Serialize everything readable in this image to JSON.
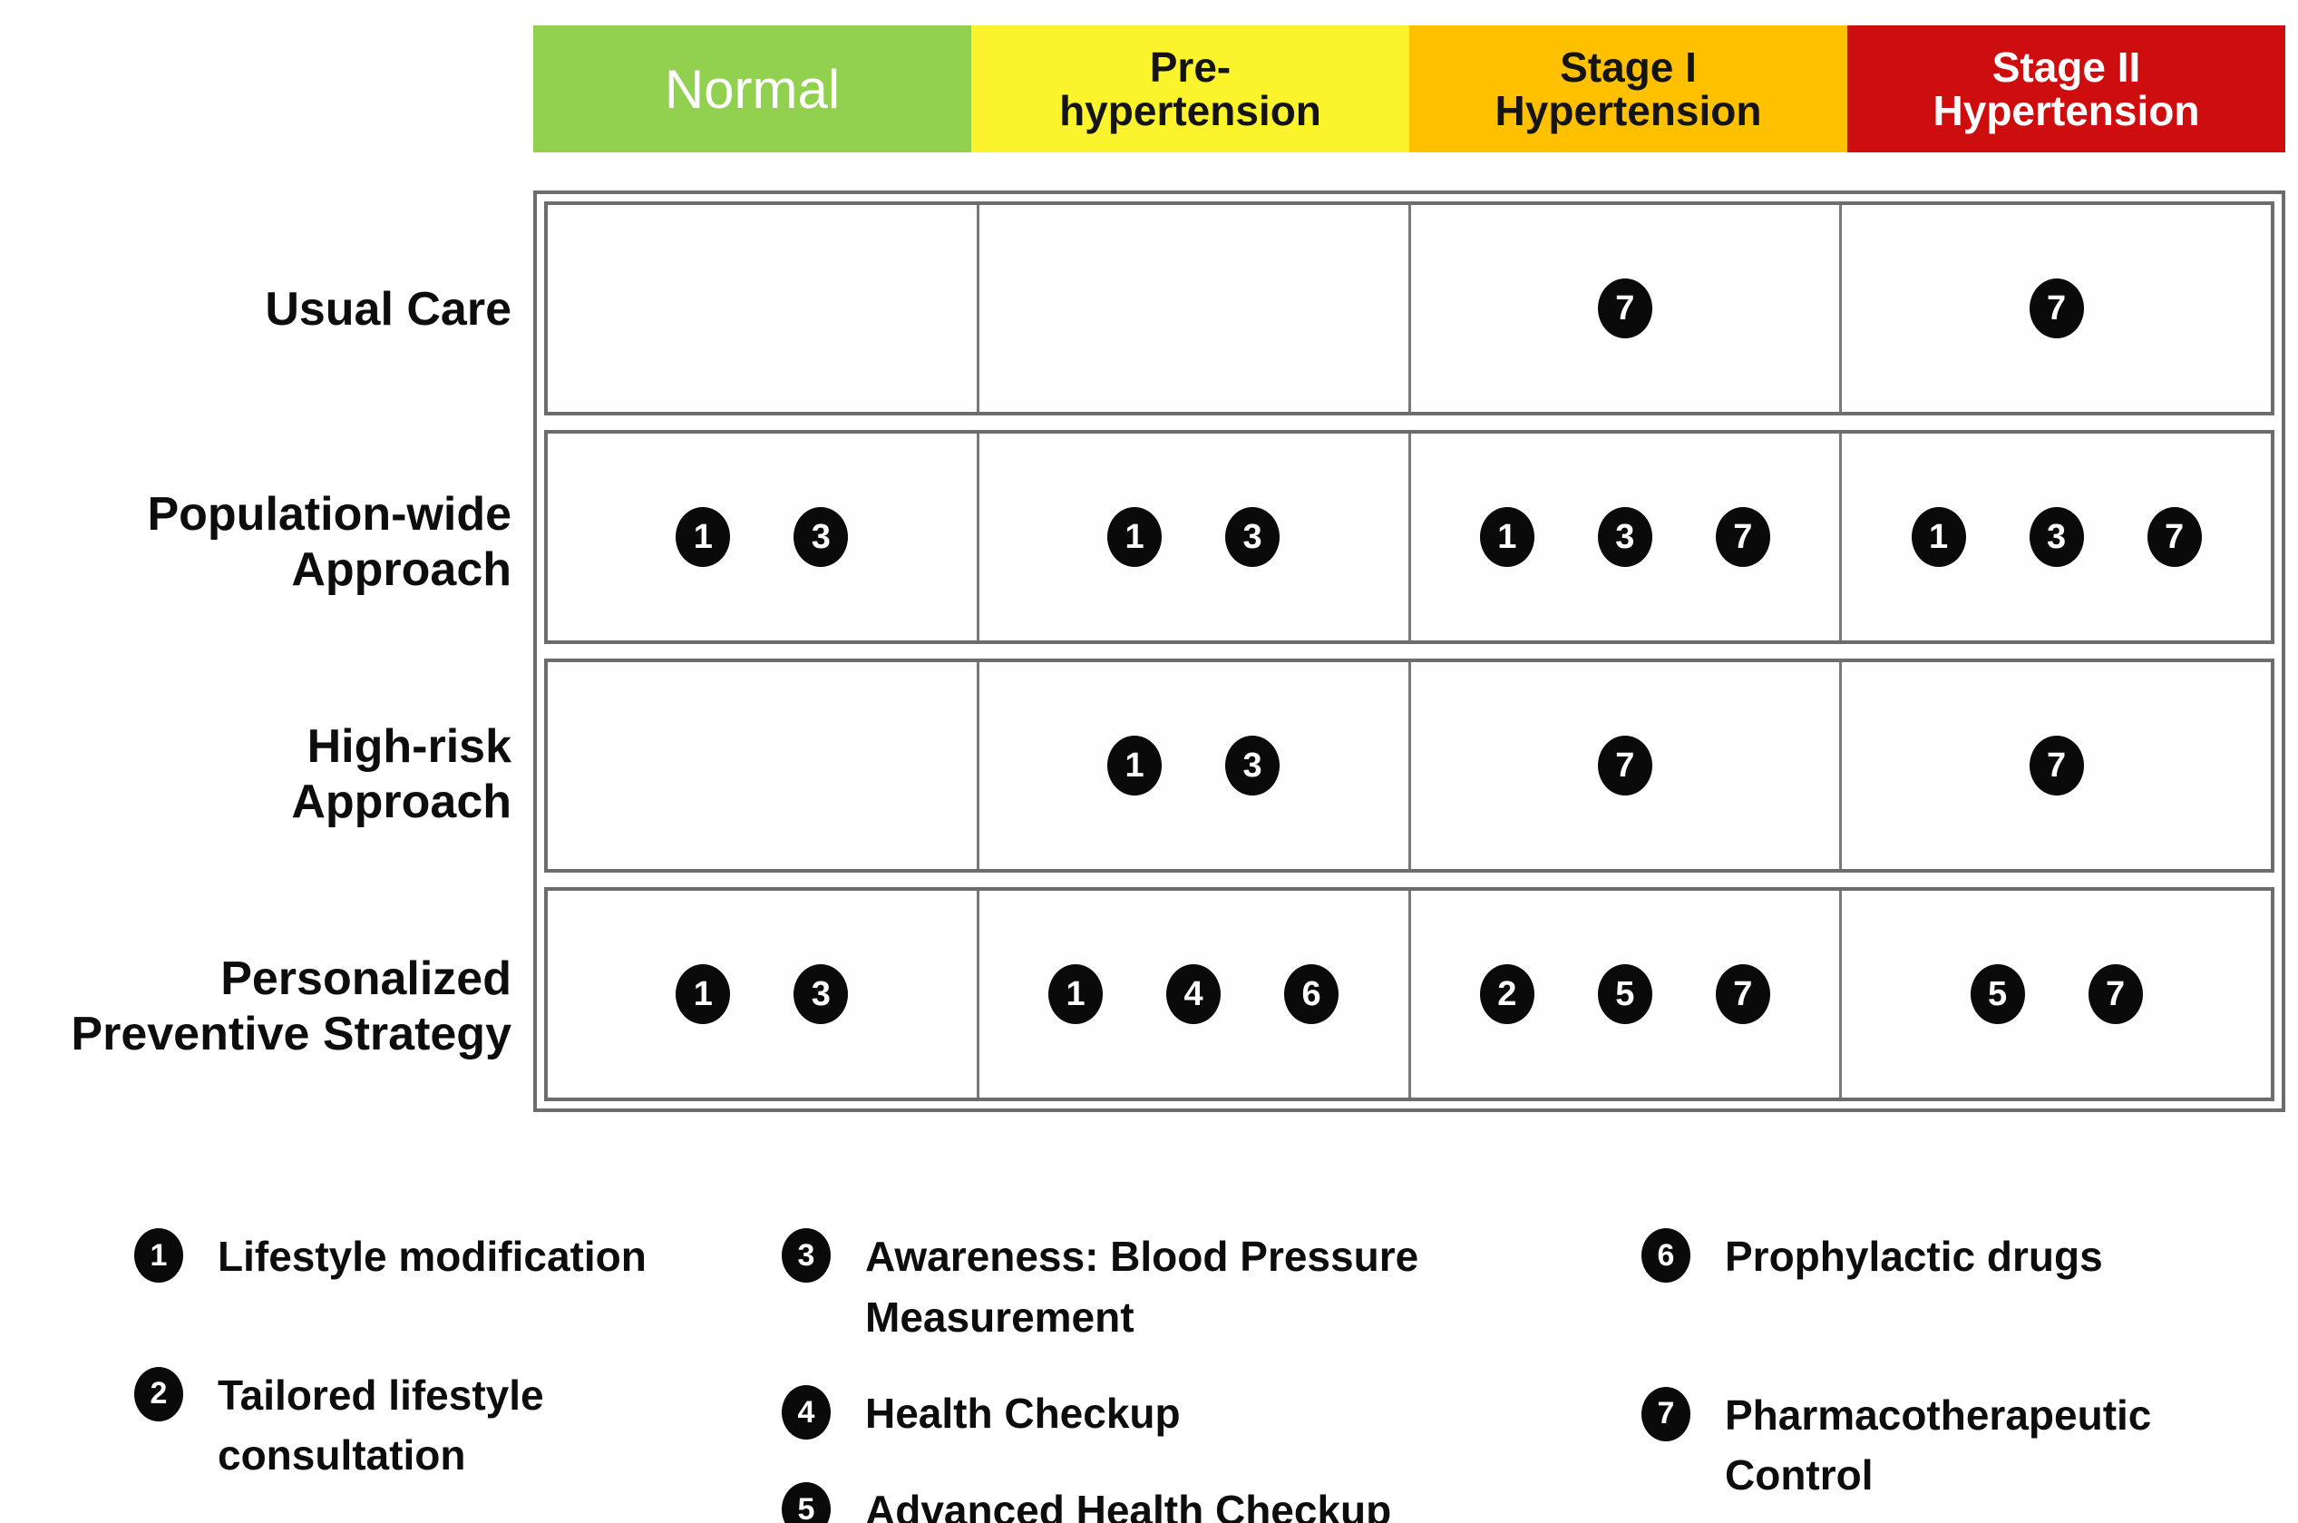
{
  "matrix": {
    "column_headers": [
      {
        "lines": [
          "Normal"
        ],
        "bg_color": "#92D050",
        "text_color": "#FFFFFF",
        "bold": false
      },
      {
        "lines": [
          "Pre-",
          "hypertension"
        ],
        "bg_color": "#FBF42D",
        "text_color": "#141414",
        "bold": true
      },
      {
        "lines": [
          "Stage I",
          "Hypertension"
        ],
        "bg_color": "#FFC000",
        "text_color": "#141414",
        "bold": true
      },
      {
        "lines": [
          "Stage II",
          "Hypertension"
        ],
        "bg_color": "#CE0E0E",
        "text_color": "#FFFFFF",
        "bold": true
      }
    ],
    "rows": [
      {
        "label_lines": [
          "Usual Care"
        ],
        "cells": [
          [],
          [],
          [
            7
          ],
          [
            7
          ]
        ]
      },
      {
        "label_lines": [
          "Population-wide",
          "Approach"
        ],
        "cells": [
          [
            1,
            3
          ],
          [
            1,
            3
          ],
          [
            1,
            3,
            7
          ],
          [
            1,
            3,
            7
          ]
        ]
      },
      {
        "label_lines": [
          "High-risk",
          "Approach"
        ],
        "cells": [
          [],
          [
            1,
            3
          ],
          [
            7
          ],
          [
            7
          ]
        ]
      },
      {
        "label_lines": [
          "Personalized",
          "Preventive Strategy"
        ],
        "cells": [
          [
            1,
            3
          ],
          [
            1,
            4,
            6
          ],
          [
            2,
            5,
            7
          ],
          [
            5,
            7
          ]
        ]
      }
    ]
  },
  "legend": {
    "columns": [
      {
        "items": [
          {
            "number": "1",
            "label": "Lifestyle modification"
          },
          {
            "number": "2",
            "label": "Tailored lifestyle consultation"
          }
        ]
      },
      {
        "items": [
          {
            "number": "3",
            "label": "Awareness: Blood Pressure Measurement"
          },
          {
            "number": "4",
            "label": "Health Checkup"
          },
          {
            "number": "5",
            "label": "Advanced Health Checkup"
          }
        ]
      },
      {
        "items": [
          {
            "number": "6",
            "label": "Prophylactic drugs"
          },
          {
            "number": "7",
            "label": "Pharmacotherapeutic Control"
          }
        ]
      }
    ]
  },
  "colors": {
    "normal_bg": "#92D050",
    "prehypertension_bg": "#FBF42D",
    "stage1_bg": "#FFC000",
    "stage2_bg": "#CE0E0E",
    "grid_border": "#6C6C6C",
    "marker_bg": "#0A0A0A",
    "marker_text": "#FFFFFF"
  }
}
